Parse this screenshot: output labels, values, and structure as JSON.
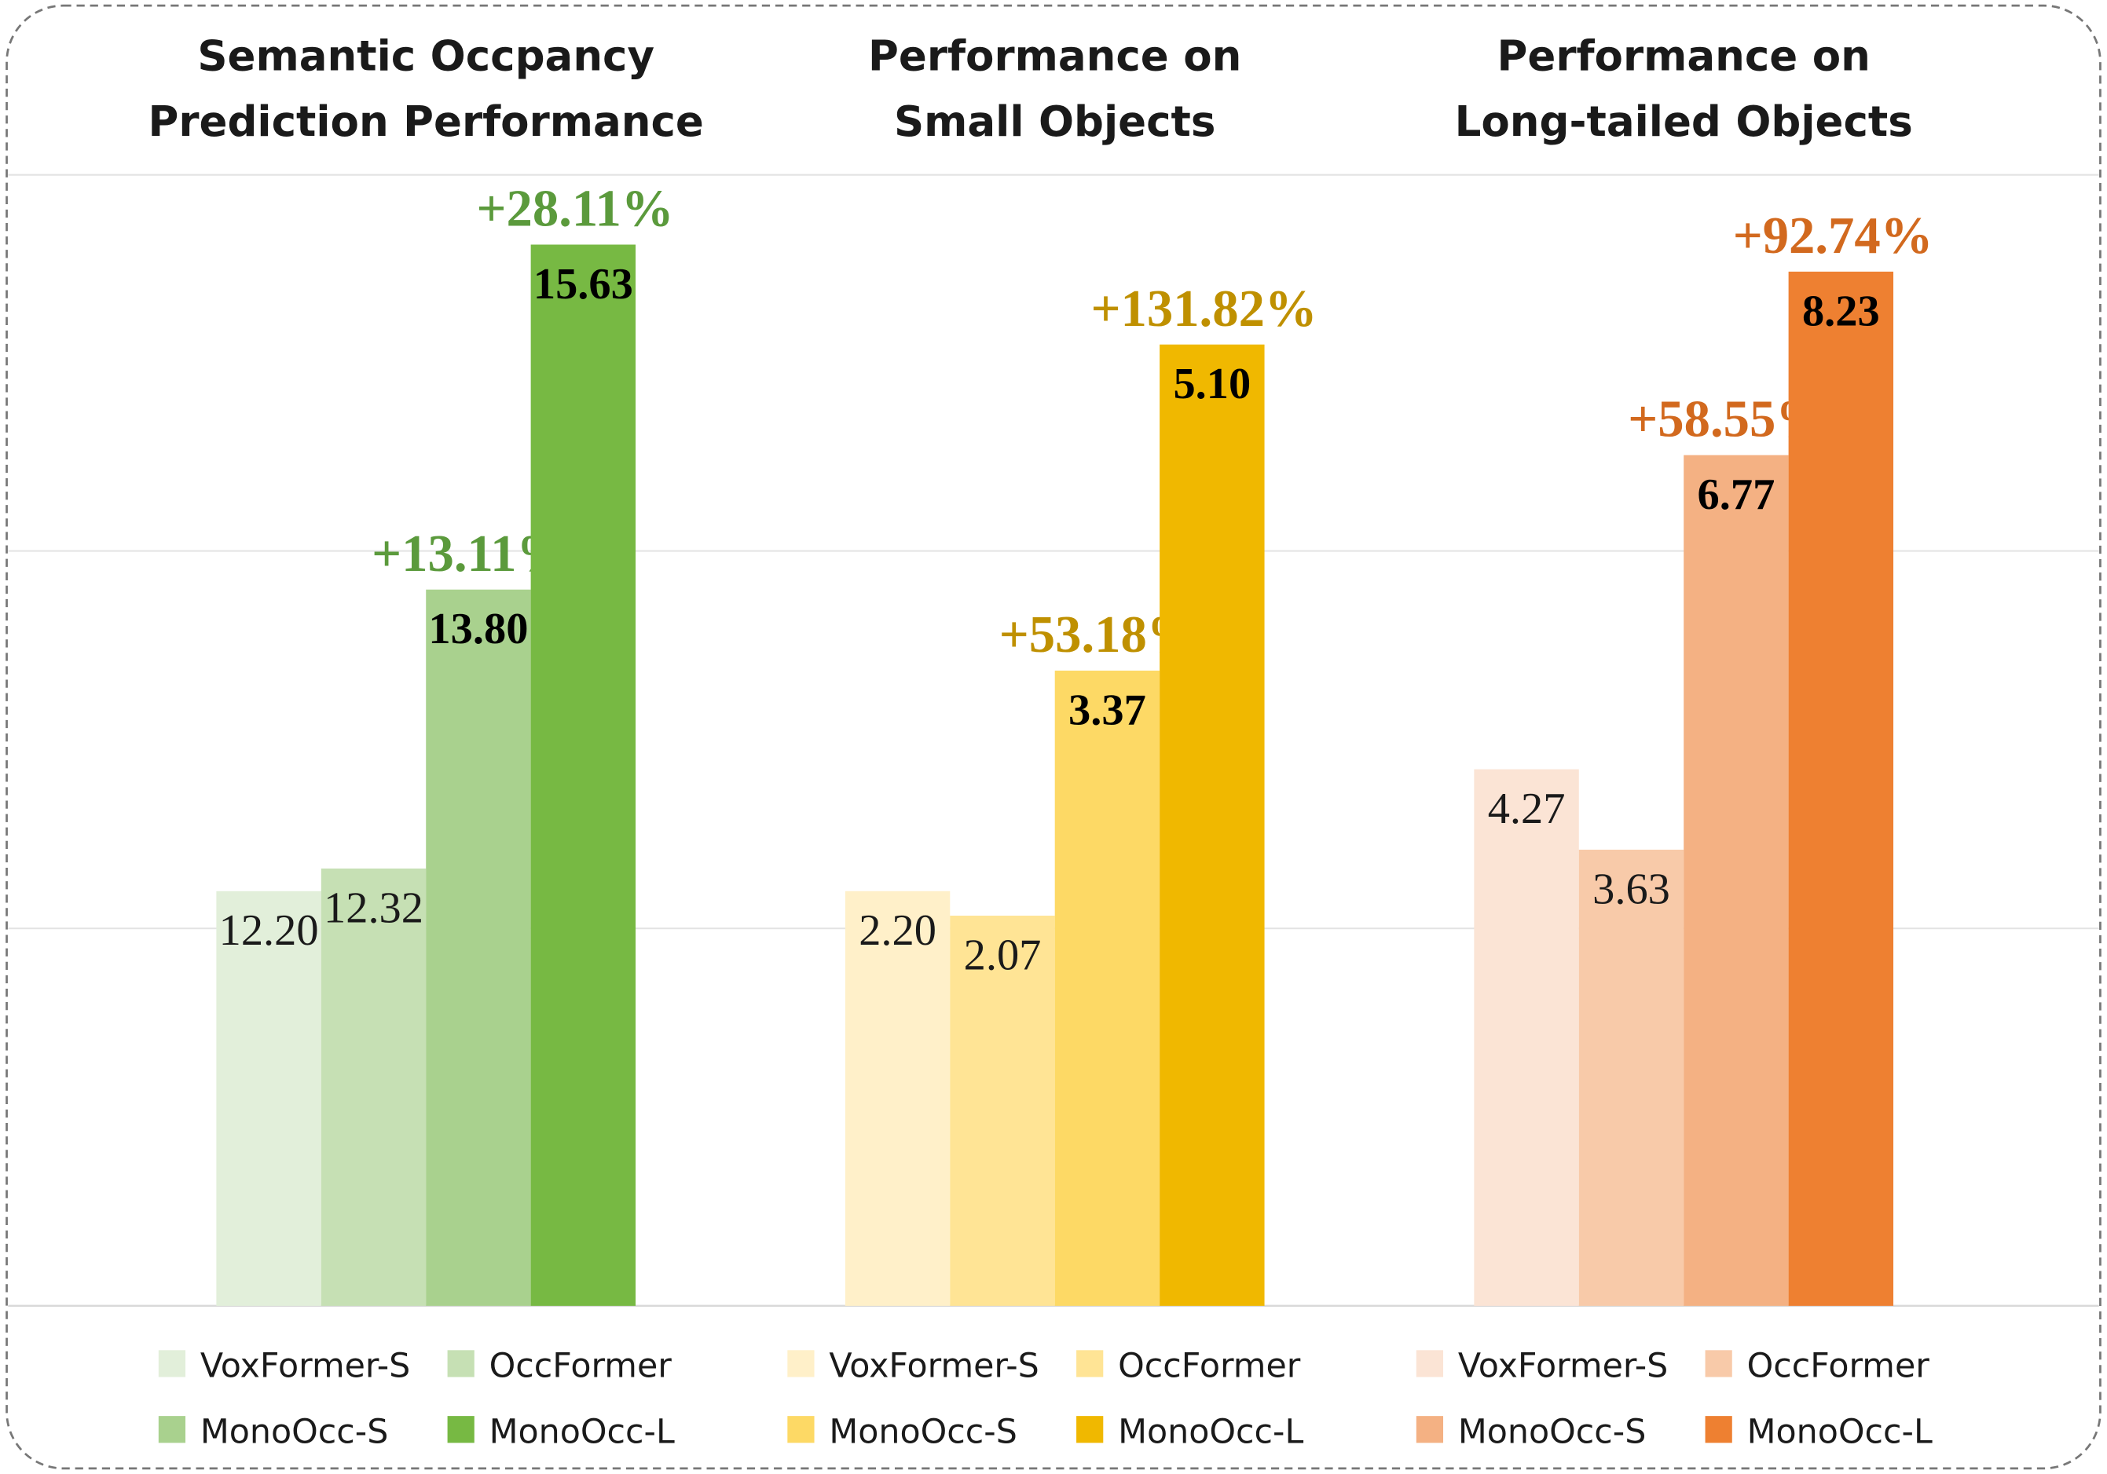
{
  "chart_data": [
    {
      "type": "bar",
      "title": "Semantic Occpancy Prediction Performance",
      "title_lines": [
        "Semantic Occpancy",
        "Prediction Performance"
      ],
      "categories": [
        "VoxFormer-S",
        "OccFormer",
        "MonoOcc-S",
        "MonoOcc-L"
      ],
      "values": [
        12.2,
        12.32,
        13.8,
        15.63
      ],
      "value_labels": [
        "12.20",
        "12.32",
        "13.80",
        "15.63"
      ],
      "annotations": [
        null,
        null,
        "+13.11%",
        "+28.11%"
      ],
      "colors": [
        "#e2efda",
        "#c6e0b4",
        "#a9d18e",
        "#77b943"
      ],
      "annotation_color": "#5b9a3c",
      "ylim": [
        10,
        16
      ],
      "grid": true,
      "legend": "bottom"
    },
    {
      "type": "bar",
      "title": "Performance on Small Objects",
      "title_lines": [
        "Performance on",
        "Small Objects"
      ],
      "categories": [
        "VoxFormer-S",
        "OccFormer",
        "MonoOcc-S",
        "MonoOcc-L"
      ],
      "values": [
        2.2,
        2.07,
        3.37,
        5.1
      ],
      "value_labels": [
        "2.20",
        "2.07",
        "3.37",
        "5.10"
      ],
      "annotations": [
        null,
        null,
        "+53.18%",
        "+131.82%"
      ],
      "colors": [
        "#fff0c9",
        "#ffe495",
        "#fdd965",
        "#f0b800"
      ],
      "annotation_color": "#bf9000",
      "ylim": [
        0,
        6
      ],
      "grid": true,
      "legend": "bottom"
    },
    {
      "type": "bar",
      "title": "Performance on Long-tailed Objects",
      "title_lines": [
        "Performance on",
        "Long-tailed Objects"
      ],
      "categories": [
        "VoxFormer-S",
        "OccFormer",
        "MonoOcc-S",
        "MonoOcc-L"
      ],
      "values": [
        4.27,
        3.63,
        6.77,
        8.23
      ],
      "value_labels": [
        "4.27",
        "3.63",
        "6.77",
        "8.23"
      ],
      "annotations": [
        null,
        null,
        "+58.55%",
        "+92.74%"
      ],
      "colors": [
        "#fbe4d5",
        "#f8caa9",
        "#f4b183",
        "#ee8031"
      ],
      "annotation_color": "#d2691e",
      "ylim": [
        0,
        9
      ],
      "grid": true,
      "legend": "bottom"
    }
  ]
}
